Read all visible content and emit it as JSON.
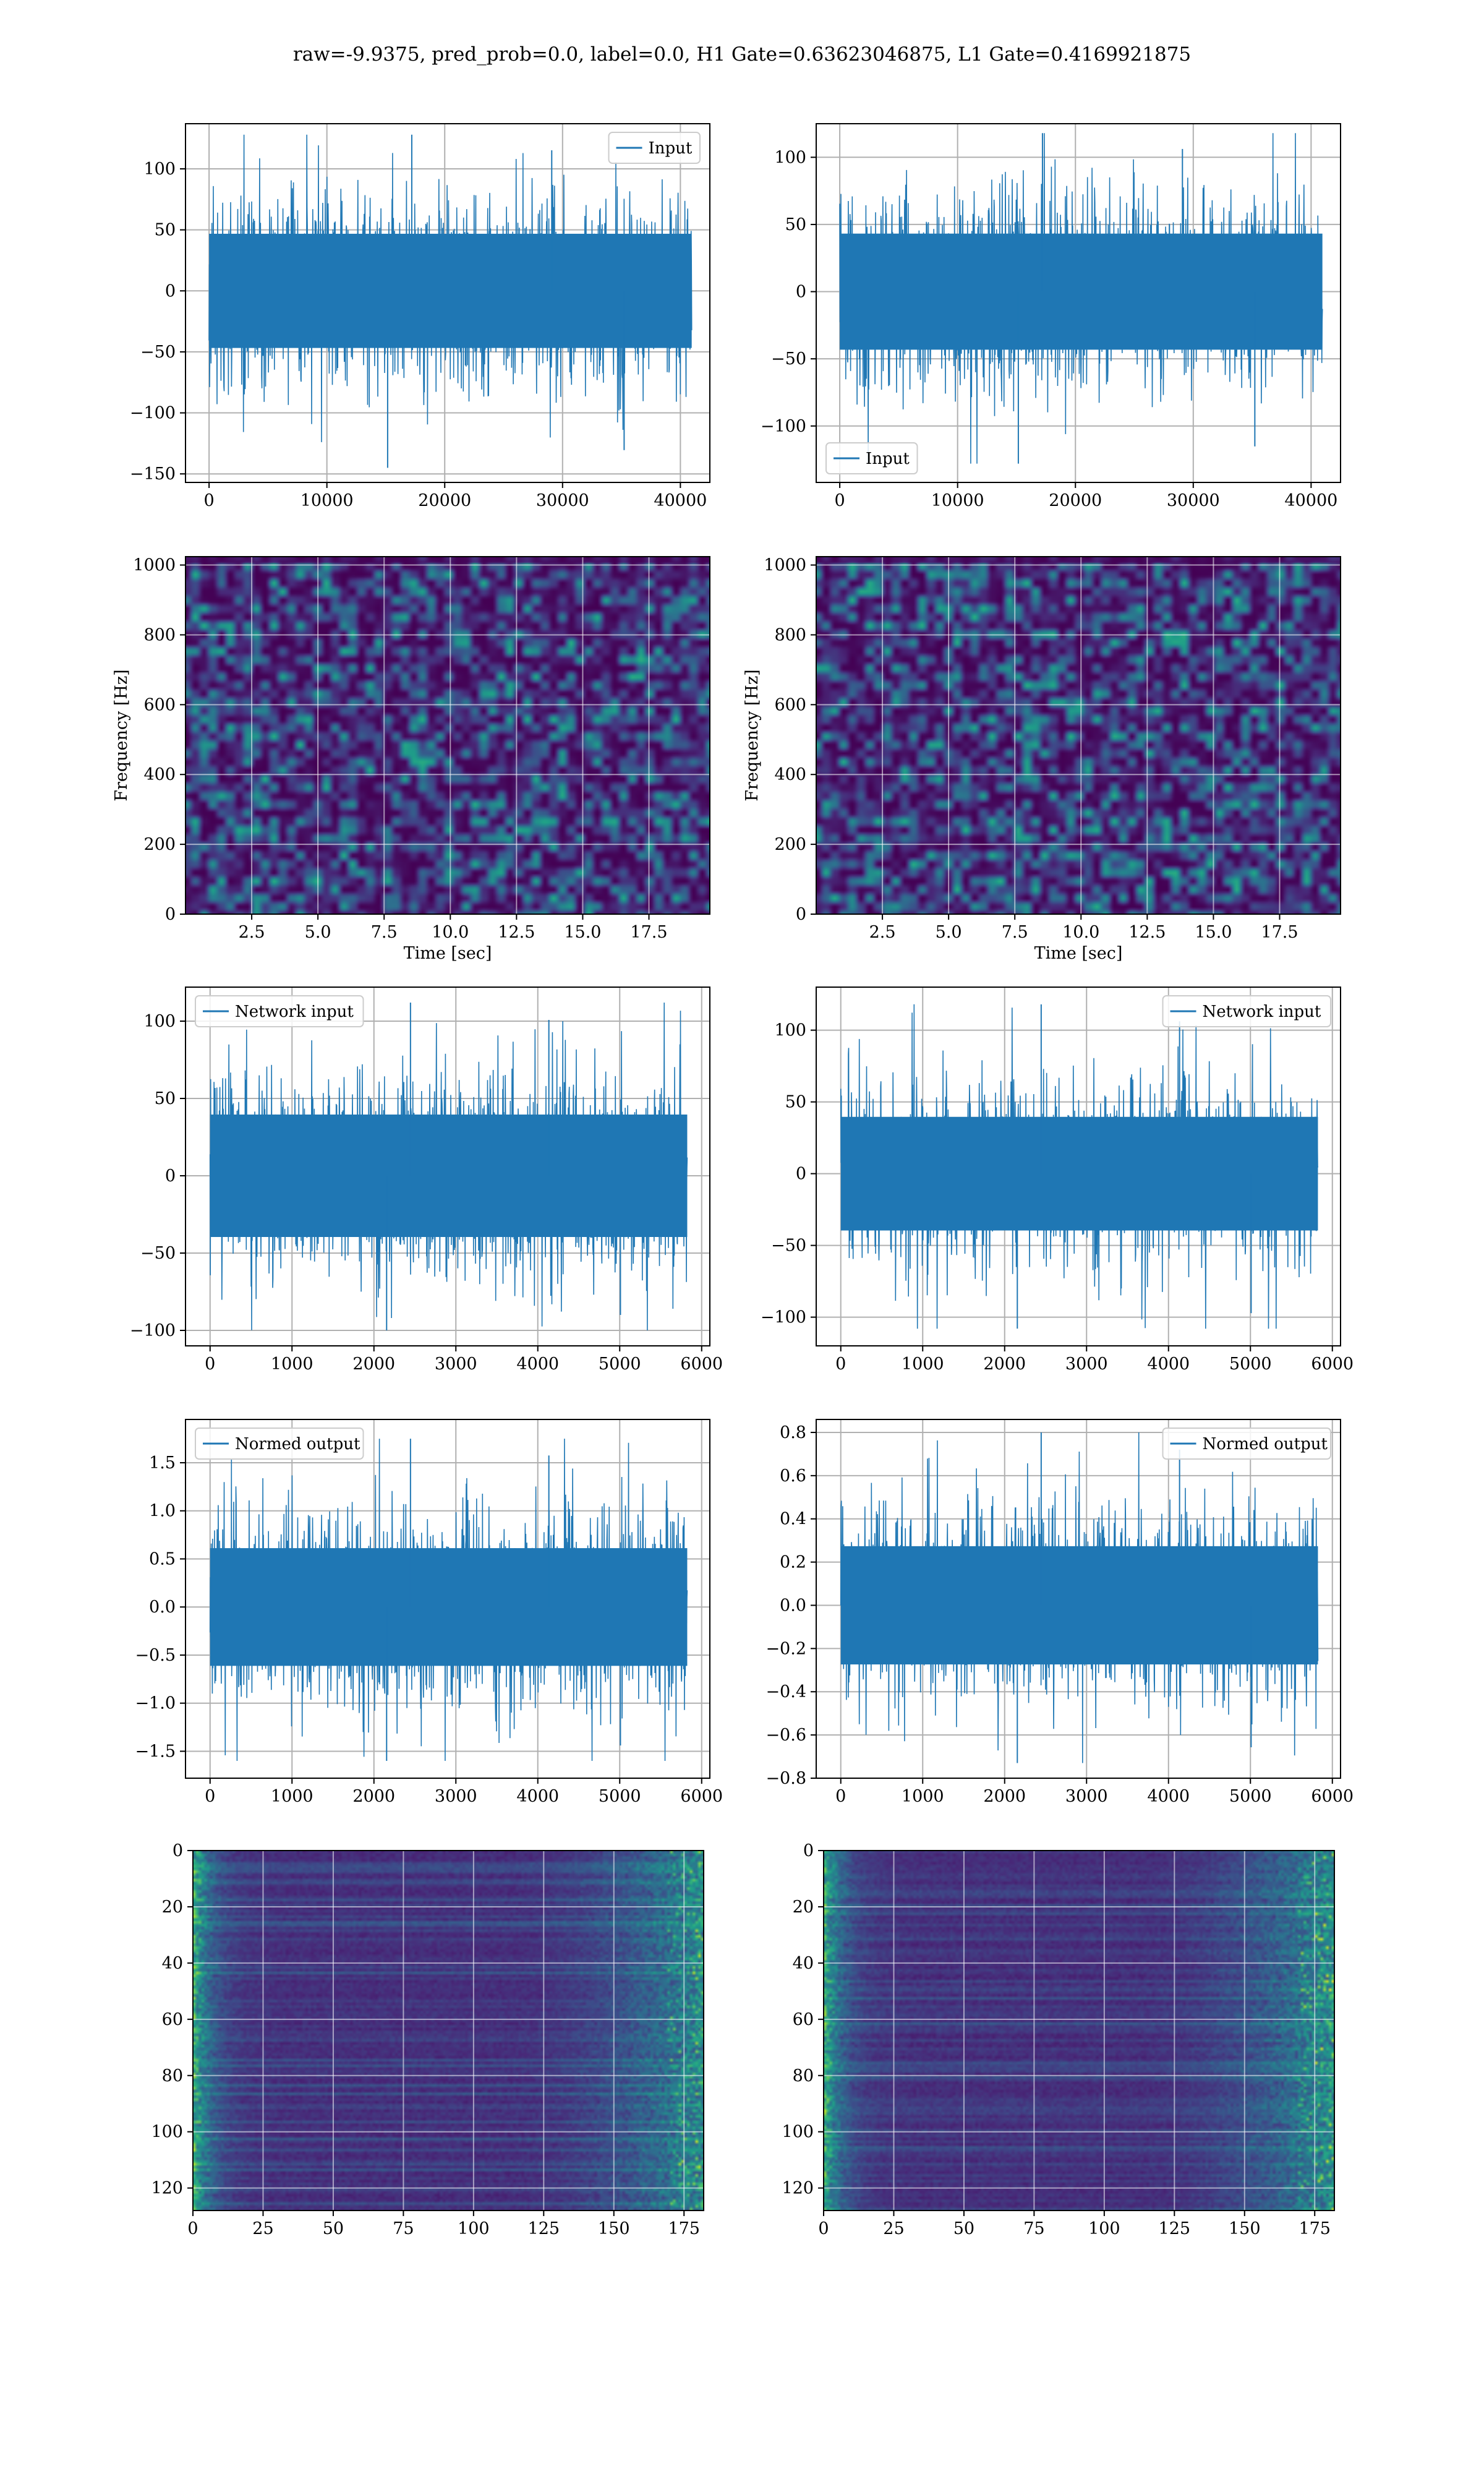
{
  "figure": {
    "suptitle": "raw=-9.9375, pred_prob=0.0, label=0.0, H1 Gate=0.63623046875, L1 Gate=0.4169921875",
    "line_color": "#1f77b4"
  },
  "chart_data": [
    {
      "id": "strain-h1",
      "type": "line",
      "title": "",
      "xlabel": "",
      "ylabel": "",
      "xlim": [
        -2000,
        42500
      ],
      "ylim": [
        -157,
        137
      ],
      "xticks": [
        0,
        10000,
        20000,
        30000,
        40000
      ],
      "yticks": [
        -150,
        -100,
        -50,
        0,
        50,
        100
      ],
      "grid": true,
      "legend": "upper right",
      "series": [
        {
          "name": "Input",
          "x_range": [
            0,
            40960
          ],
          "envelope_min": -145,
          "envelope_max": 128,
          "typical_amplitude": 65,
          "seed": 11
        }
      ]
    },
    {
      "id": "strain-l1",
      "type": "line",
      "title": "",
      "xlabel": "",
      "ylabel": "",
      "xlim": [
        -2000,
        42500
      ],
      "ylim": [
        -142,
        125
      ],
      "xticks": [
        0,
        10000,
        20000,
        30000,
        40000
      ],
      "yticks": [
        -100,
        -50,
        0,
        50,
        100
      ],
      "grid": true,
      "legend": "lower left",
      "series": [
        {
          "name": "Input",
          "x_range": [
            0,
            40960
          ],
          "envelope_min": -128,
          "envelope_max": 118,
          "typical_amplitude": 60,
          "seed": 23
        }
      ]
    },
    {
      "id": "spectrogram-h1",
      "type": "heatmap",
      "title": "",
      "xlabel": "Time [sec]",
      "ylabel": "Frequency [Hz]",
      "xlim": [
        0,
        19.8
      ],
      "ylim": [
        0,
        1024
      ],
      "xticks": [
        2.5,
        5.0,
        7.5,
        10.0,
        12.5,
        15.0,
        17.5
      ],
      "xtick_labels": [
        "2.5",
        "5.0",
        "7.5",
        "10.0",
        "12.5",
        "15.0",
        "17.5"
      ],
      "yticks": [
        0,
        200,
        400,
        600,
        800,
        1000
      ],
      "grid": true,
      "colormap": "viridis",
      "seed": 5
    },
    {
      "id": "spectrogram-l1",
      "type": "heatmap",
      "title": "",
      "xlabel": "Time [sec]",
      "ylabel": "Frequency [Hz]",
      "xlim": [
        0,
        19.8
      ],
      "ylim": [
        0,
        1024
      ],
      "xticks": [
        2.5,
        5.0,
        7.5,
        10.0,
        12.5,
        15.0,
        17.5
      ],
      "xtick_labels": [
        "2.5",
        "5.0",
        "7.5",
        "10.0",
        "12.5",
        "15.0",
        "17.5"
      ],
      "yticks": [
        0,
        200,
        400,
        600,
        800,
        1000
      ],
      "grid": true,
      "colormap": "viridis",
      "seed": 9
    },
    {
      "id": "network-input-h1",
      "type": "line",
      "title": "",
      "xlabel": "",
      "ylabel": "",
      "xlim": [
        -300,
        6100
      ],
      "ylim": [
        -110,
        122
      ],
      "xticks": [
        0,
        1000,
        2000,
        3000,
        4000,
        5000,
        6000
      ],
      "yticks": [
        -100,
        -50,
        0,
        50,
        100
      ],
      "grid": true,
      "legend": "upper left",
      "series": [
        {
          "name": "Network input",
          "x_range": [
            0,
            5824
          ],
          "envelope_min": -100,
          "envelope_max": 112,
          "typical_amplitude": 55,
          "seed": 31
        }
      ]
    },
    {
      "id": "network-input-l1",
      "type": "line",
      "title": "",
      "xlabel": "",
      "ylabel": "",
      "xlim": [
        -300,
        6100
      ],
      "ylim": [
        -120,
        130
      ],
      "xticks": [
        0,
        1000,
        2000,
        3000,
        4000,
        5000,
        6000
      ],
      "yticks": [
        -100,
        -50,
        0,
        50,
        100
      ],
      "grid": true,
      "legend": "upper right",
      "series": [
        {
          "name": "Network input",
          "x_range": [
            0,
            5824
          ],
          "envelope_min": -108,
          "envelope_max": 118,
          "typical_amplitude": 55,
          "seed": 37
        }
      ]
    },
    {
      "id": "normed-output-h1",
      "type": "line",
      "title": "",
      "xlabel": "",
      "ylabel": "",
      "xlim": [
        -300,
        6100
      ],
      "ylim": [
        -1.78,
        1.95
      ],
      "xticks": [
        0,
        1000,
        2000,
        3000,
        4000,
        5000,
        6000
      ],
      "yticks": [
        -1.5,
        -1.0,
        -0.5,
        0.0,
        0.5,
        1.0,
        1.5
      ],
      "ytick_labels": [
        "−1.5",
        "−1.0",
        "−0.5",
        "0.0",
        "0.5",
        "1.0",
        "1.5"
      ],
      "grid": true,
      "legend": "upper left",
      "series": [
        {
          "name": "Normed output",
          "x_range": [
            0,
            5824
          ],
          "envelope_min": -1.6,
          "envelope_max": 1.75,
          "typical_amplitude": 0.85,
          "seed": 41
        }
      ]
    },
    {
      "id": "normed-output-l1",
      "type": "line",
      "title": "",
      "xlabel": "",
      "ylabel": "",
      "xlim": [
        -300,
        6100
      ],
      "ylim": [
        -0.8,
        0.86
      ],
      "xticks": [
        0,
        1000,
        2000,
        3000,
        4000,
        5000,
        6000
      ],
      "yticks": [
        -0.8,
        -0.6,
        -0.4,
        -0.2,
        0.0,
        0.2,
        0.4,
        0.6,
        0.8
      ],
      "ytick_labels": [
        "−0.8",
        "−0.6",
        "−0.4",
        "−0.2",
        "0.0",
        "0.2",
        "0.4",
        "0.6",
        "0.8"
      ],
      "grid": true,
      "legend": "upper right",
      "series": [
        {
          "name": "Normed output",
          "x_range": [
            0,
            5824
          ],
          "envelope_min": -0.73,
          "envelope_max": 0.8,
          "typical_amplitude": 0.38,
          "seed": 43
        }
      ]
    },
    {
      "id": "feature-map-h1",
      "type": "heatmap",
      "title": "",
      "xlabel": "",
      "ylabel": "",
      "xlim": [
        0,
        182
      ],
      "ylim": [
        128,
        0
      ],
      "xticks": [
        0,
        25,
        50,
        75,
        100,
        125,
        150,
        175
      ],
      "yticks": [
        0,
        20,
        40,
        60,
        80,
        100,
        120
      ],
      "grid": true,
      "colormap": "viridis",
      "rows": 128,
      "cols": 182,
      "seed": 53
    },
    {
      "id": "feature-map-l1",
      "type": "heatmap",
      "title": "",
      "xlabel": "",
      "ylabel": "",
      "xlim": [
        0,
        182
      ],
      "ylim": [
        128,
        0
      ],
      "xticks": [
        0,
        25,
        50,
        75,
        100,
        125,
        150,
        175
      ],
      "yticks": [
        0,
        20,
        40,
        60,
        80,
        100,
        120
      ],
      "grid": true,
      "colormap": "viridis",
      "rows": 128,
      "cols": 182,
      "seed": 59
    }
  ]
}
